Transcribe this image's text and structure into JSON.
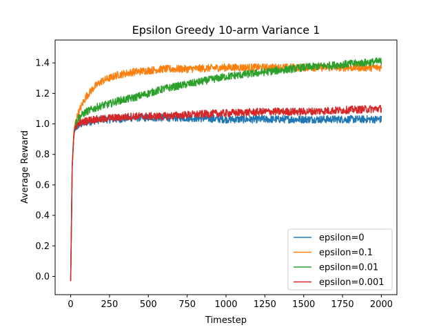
{
  "chart_data": {
    "type": "line",
    "title": "Epsilon Greedy 10-arm Variance 1",
    "xlabel": "Timestep",
    "ylabel": "Average Reward",
    "xlim": [
      -100,
      2100
    ],
    "ylim": [
      -0.12,
      1.55
    ],
    "xticks": [
      0,
      250,
      500,
      750,
      1000,
      1250,
      1500,
      1750,
      2000
    ],
    "yticks": [
      0.0,
      0.2,
      0.4,
      0.6,
      0.8,
      1.0,
      1.2,
      1.4
    ],
    "x": [
      0,
      10,
      20,
      30,
      50,
      75,
      100,
      150,
      200,
      250,
      300,
      400,
      500,
      600,
      750,
      1000,
      1250,
      1500,
      1750,
      2000
    ],
    "series": [
      {
        "name": "epsilon=0",
        "color": "#1f77b4",
        "values": [
          -0.03,
          0.72,
          0.92,
          0.97,
          0.99,
          1.0,
          1.01,
          1.02,
          1.03,
          1.03,
          1.03,
          1.04,
          1.04,
          1.04,
          1.04,
          1.03,
          1.03,
          1.03,
          1.03,
          1.03
        ]
      },
      {
        "name": "epsilon=0.1",
        "color": "#ff7f0e",
        "values": [
          -0.03,
          0.72,
          0.94,
          1.01,
          1.07,
          1.13,
          1.18,
          1.24,
          1.28,
          1.3,
          1.32,
          1.34,
          1.35,
          1.36,
          1.36,
          1.37,
          1.37,
          1.37,
          1.37,
          1.37
        ]
      },
      {
        "name": "epsilon=0.01",
        "color": "#2ca02c",
        "values": [
          -0.03,
          0.72,
          0.93,
          1.0,
          1.04,
          1.06,
          1.08,
          1.1,
          1.12,
          1.13,
          1.15,
          1.17,
          1.2,
          1.23,
          1.26,
          1.31,
          1.34,
          1.37,
          1.39,
          1.41
        ]
      },
      {
        "name": "epsilon=0.001",
        "color": "#d62728",
        "values": [
          -0.03,
          0.72,
          0.92,
          0.98,
          1.0,
          1.01,
          1.02,
          1.03,
          1.03,
          1.04,
          1.04,
          1.05,
          1.05,
          1.05,
          1.06,
          1.07,
          1.08,
          1.08,
          1.09,
          1.1
        ]
      }
    ],
    "noise": [
      0.025,
      0.025,
      0.025,
      0.025
    ],
    "legend": "lower right",
    "grid": false
  }
}
